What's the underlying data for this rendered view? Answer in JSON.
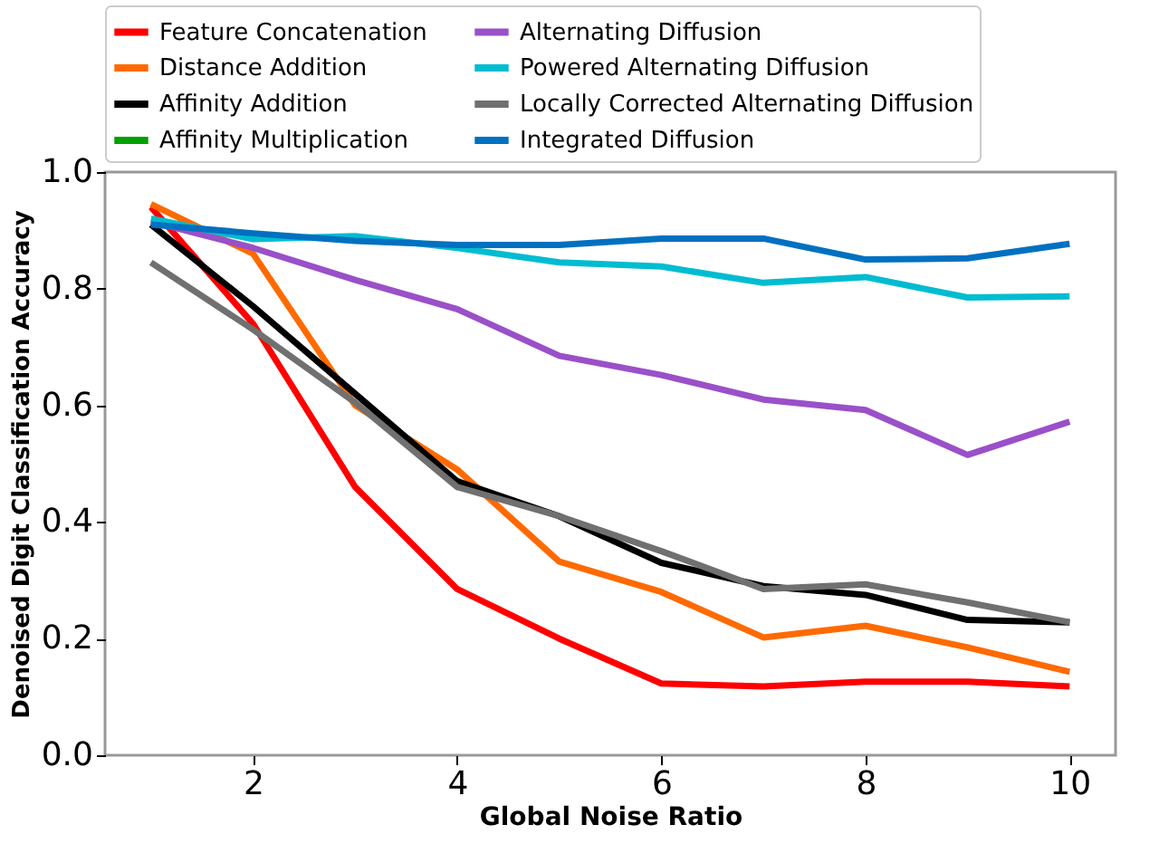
{
  "chart_data": {
    "type": "line",
    "xlabel": "Global Noise Ratio",
    "ylabel": "Denoised Digit Classification Accuracy",
    "x": [
      1,
      2,
      3,
      4,
      5,
      6,
      7,
      8,
      9,
      10
    ],
    "xlim": [
      0.55,
      10.45
    ],
    "xticks": [
      2,
      4,
      6,
      8,
      10
    ],
    "ylim": [
      0,
      1
    ],
    "yticks": [
      {
        "value": 0,
        "label": "0.0"
      },
      0.2,
      0.4,
      0.6,
      0.8,
      {
        "value": 1,
        "label": "1.0"
      }
    ],
    "grid": false,
    "legend": "top",
    "marker": "none",
    "line_style": "solid",
    "series": [
      {
        "name": "Feature Concatenation",
        "color": "#ff0000",
        "values": [
          0.94,
          0.74,
          0.46,
          0.285,
          0.2,
          0.123,
          0.118,
          0.126,
          0.126,
          0.118
        ]
      },
      {
        "name": "Distance Addition",
        "color": "#ff6a00",
        "values": [
          0.945,
          0.86,
          0.6,
          0.49,
          0.332,
          0.28,
          0.202,
          0.222,
          0.185,
          0.143
        ]
      },
      {
        "name": "Affinity Addition",
        "color": "#000000",
        "values": [
          0.91,
          0.77,
          0.62,
          0.47,
          0.41,
          0.33,
          0.29,
          0.275,
          0.232,
          0.228
        ]
      },
      {
        "name": "Affinity Multiplication",
        "color": "#00a000",
        "values": [
          null,
          null,
          null,
          null,
          null,
          null,
          null,
          null,
          null,
          null
        ]
      },
      {
        "name": "Alternating Diffusion",
        "color": "#9a50c8",
        "values": [
          0.915,
          0.87,
          0.815,
          0.765,
          0.685,
          0.652,
          0.61,
          0.592,
          0.515,
          0.572
        ]
      },
      {
        "name": "Powered Alternating Diffusion",
        "color": "#00bcd0",
        "values": [
          0.92,
          0.885,
          0.89,
          0.87,
          0.845,
          0.838,
          0.81,
          0.82,
          0.785,
          0.787
        ]
      },
      {
        "name": "Locally Corrected Alternating Diffusion",
        "color": "#707070",
        "values": [
          0.845,
          0.73,
          0.605,
          0.46,
          0.41,
          0.35,
          0.285,
          0.293,
          0.262,
          0.228
        ]
      },
      {
        "name": "Integrated Diffusion",
        "color": "#0070c0",
        "values": [
          0.91,
          0.895,
          0.882,
          0.875,
          0.875,
          0.886,
          0.886,
          0.85,
          0.852,
          0.877
        ]
      }
    ]
  }
}
